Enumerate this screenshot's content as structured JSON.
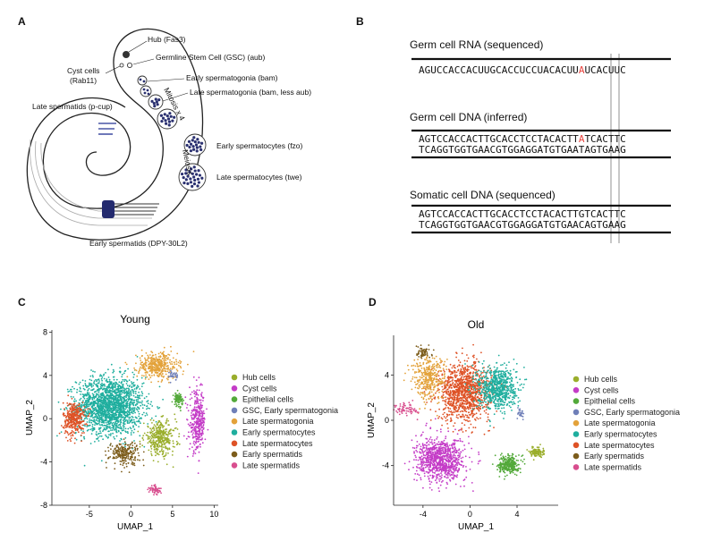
{
  "panels": {
    "A": {
      "letter": "A",
      "labels": {
        "hub": "Hub (Fas3)",
        "gsc": "Germline Stem Cell (GSC) (aub)",
        "cyst_1": "Cyst cells",
        "cyst_2": "(Rab11)",
        "early_spg": "Early spermatogonia (bam)",
        "late_spg": "Late spermatogonia (bam, less aub)",
        "late_spd": "Late spermatids (p-cup)",
        "mitosis": "Mitosis x 4",
        "meiosis": "Meiosis",
        "early_spc": "Early spermatocytes (fzo)",
        "late_spc": "Late spermatocytes (twe)",
        "early_spd": "Early spermatids (DPY-30L2)"
      }
    },
    "B": {
      "letter": "B",
      "rna_title": "Germ cell RNA (sequenced)",
      "rna_seq_a": "AGUCCACCACUUGCACCUCCUACACUU",
      "rna_seq_hl": "A",
      "rna_seq_b": "UCACUUC",
      "germ_dna_title": "Germ cell DNA (inferred)",
      "germ_top_a": "AGTCCACCACTTGCACCTCCTACACTT",
      "germ_top_hl": "A",
      "germ_top_b": "TCACTTC",
      "germ_bot": "TCAGGTGGTGAACGTGGAGGATGTGAATAGTGAAG",
      "soma_dna_title": "Somatic cell DNA (sequenced)",
      "soma_top": "AGTCCACCACTTGCACCTCCTACACTTGTCACTTC",
      "soma_bot": "TCAGGTGGTGAACGTGGAGGATGTGAACAGTGAAG",
      "highlight_color": "#e8413c"
    },
    "C": {
      "letter": "C"
    },
    "D": {
      "letter": "D"
    }
  },
  "legend": [
    {
      "name": "Hub cells",
      "color": "#9aae2c"
    },
    {
      "name": "Cyst cells",
      "color": "#c43cc7"
    },
    {
      "name": "Epithelial cells",
      "color": "#53a93a"
    },
    {
      "name": "GSC, Early spermatogonia",
      "color": "#6f7fb8"
    },
    {
      "name": "Late spermatogonia",
      "color": "#e3a23a"
    },
    {
      "name": "Early spermatocytes",
      "color": "#1fae9e"
    },
    {
      "name": "Late spermatocytes",
      "color": "#de5226"
    },
    {
      "name": "Early spermatids",
      "color": "#7c5c1b"
    },
    {
      "name": "Late spermatids",
      "color": "#d84e8e"
    }
  ],
  "chart_data": [
    {
      "type": "scatter",
      "title": "Young",
      "xlabel": "UMAP_1",
      "ylabel": "UMAP_2",
      "xlim": [
        -9.5,
        10.5
      ],
      "ylim": [
        -8,
        8.2
      ],
      "xticks": [
        "-5",
        "0",
        "5",
        "10"
      ],
      "xtick_values": [
        -5,
        0,
        5,
        10
      ],
      "yticks": [
        "-8",
        "-4",
        "0",
        "4",
        "8"
      ],
      "ytick_values": [
        -8,
        -4,
        0,
        4,
        8
      ],
      "clusters": [
        {
          "series": "Early spermatocytes",
          "cx": -2.5,
          "cy": 1.2,
          "sx": 3.3,
          "sy": 2.2,
          "n": 1800
        },
        {
          "series": "Late spermatocytes",
          "cx": -6.8,
          "cy": 0.0,
          "sx": 1.1,
          "sy": 1.3,
          "n": 350
        },
        {
          "series": "Late spermatogonia",
          "cx": 3.2,
          "cy": 4.9,
          "sx": 2.0,
          "sy": 1.0,
          "n": 400
        },
        {
          "series": "Hub cells",
          "cx": 3.5,
          "cy": -1.8,
          "sx": 1.6,
          "sy": 1.3,
          "n": 350
        },
        {
          "series": "Cyst cells",
          "cx": 8.0,
          "cy": -0.3,
          "sx": 0.8,
          "sy": 2.3,
          "n": 350
        },
        {
          "series": "Epithelial cells",
          "cx": 5.7,
          "cy": 1.8,
          "sx": 0.45,
          "sy": 0.5,
          "n": 90
        },
        {
          "series": "Early spermatids",
          "cx": -0.8,
          "cy": -3.2,
          "sx": 1.5,
          "sy": 0.9,
          "n": 220
        },
        {
          "series": "Late spermatids",
          "cx": 2.9,
          "cy": -6.6,
          "sx": 0.6,
          "sy": 0.4,
          "n": 60
        },
        {
          "series": "GSC, Early spermatogonia",
          "cx": 5.1,
          "cy": 4.0,
          "sx": 0.4,
          "sy": 0.4,
          "n": 30
        }
      ]
    },
    {
      "type": "scatter",
      "title": "Old",
      "xlabel": "UMAP_1",
      "ylabel": "UMAP_2",
      "xlim": [
        -6.5,
        7.5
      ],
      "ylim": [
        -7.5,
        7.5
      ],
      "xticks": [
        "-4",
        "0",
        "4"
      ],
      "xtick_values": [
        -4,
        0,
        4
      ],
      "yticks": [
        "-4",
        "0",
        "4"
      ],
      "ytick_values": [
        -4,
        0,
        4
      ],
      "clusters": [
        {
          "series": "Late spermatocytes",
          "cx": -0.5,
          "cy": 2.5,
          "sx": 1.8,
          "sy": 2.1,
          "n": 1100
        },
        {
          "series": "Early spermatocytes",
          "cx": 2.3,
          "cy": 2.9,
          "sx": 1.4,
          "sy": 1.6,
          "n": 700
        },
        {
          "series": "Late spermatogonia",
          "cx": -3.5,
          "cy": 3.7,
          "sx": 1.2,
          "sy": 1.6,
          "n": 350
        },
        {
          "series": "Cyst cells",
          "cx": -2.5,
          "cy": -3.5,
          "sx": 1.7,
          "sy": 1.6,
          "n": 900
        },
        {
          "series": "Epithelial cells",
          "cx": 3.3,
          "cy": -3.9,
          "sx": 0.7,
          "sy": 0.7,
          "n": 280
        },
        {
          "series": "Hub cells",
          "cx": 5.7,
          "cy": -2.8,
          "sx": 0.5,
          "sy": 0.35,
          "n": 110
        },
        {
          "series": "Early spermatids",
          "cx": -4.0,
          "cy": 6.0,
          "sx": 0.6,
          "sy": 0.4,
          "n": 60
        },
        {
          "series": "Late spermatids",
          "cx": -5.5,
          "cy": 1.0,
          "sx": 0.9,
          "sy": 0.5,
          "n": 70
        },
        {
          "series": "GSC, Early spermatogonia",
          "cx": 4.3,
          "cy": 0.6,
          "sx": 0.3,
          "sy": 0.4,
          "n": 25
        }
      ]
    }
  ]
}
